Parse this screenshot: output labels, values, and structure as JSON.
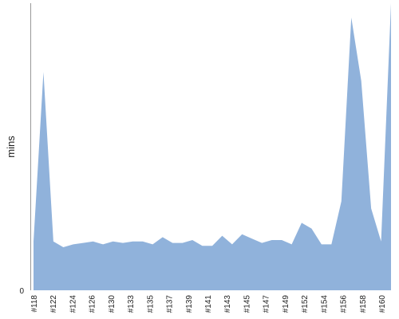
{
  "chart_data": {
    "type": "area",
    "title": "",
    "xlabel": "",
    "ylabel": "mins",
    "y_tick_labels": [
      "0"
    ],
    "x_tick_labels": [
      "#118",
      "#122",
      "#124",
      "#126",
      "#130",
      "#133",
      "#135",
      "#137",
      "#139",
      "#141",
      "#143",
      "#145",
      "#147",
      "#149",
      "#152",
      "#154",
      "#156",
      "#158",
      "#160"
    ],
    "ylim": [
      0,
      100
    ],
    "grid": false,
    "legend": "none",
    "color": "#90b2db",
    "series": [
      {
        "values": [
          17,
          76,
          17,
          15,
          16,
          16.5,
          17,
          16,
          17,
          16.5,
          17,
          17,
          16,
          18.5,
          16.5,
          16.5,
          17.5,
          15.5,
          15.5,
          19,
          16,
          19.5,
          18,
          16.5,
          17.5,
          17.5,
          16,
          23.5,
          21.5,
          16,
          16,
          31,
          95,
          73,
          28.5,
          17,
          100
        ]
      }
    ]
  }
}
